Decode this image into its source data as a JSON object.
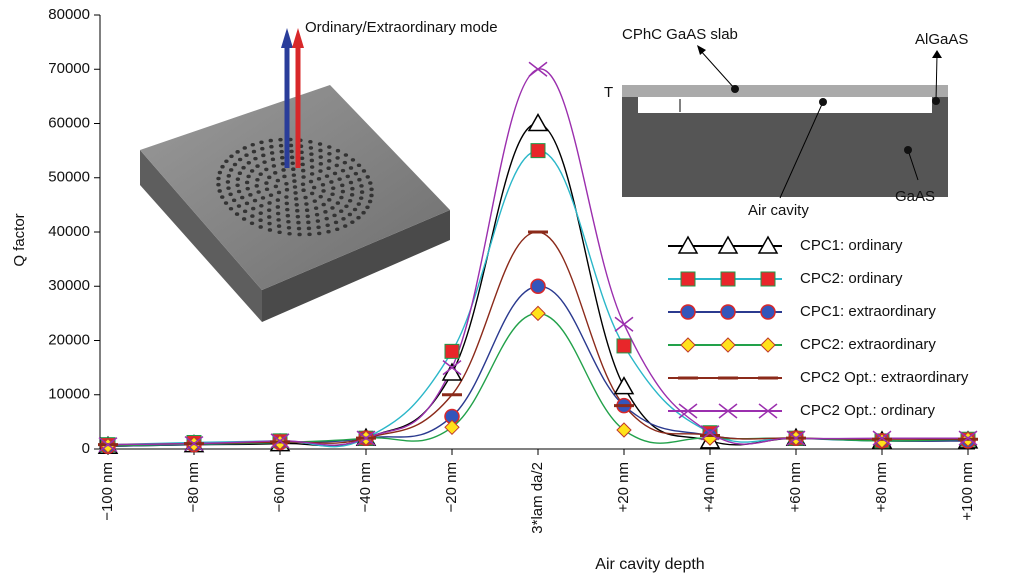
{
  "chart_data": {
    "type": "line",
    "y_label": "Q factor",
    "x_label": "Air cavity depth",
    "categories": [
      "−100 nm",
      "−80 nm",
      "−60 nm",
      "−40 nm",
      "−20 nm",
      "3*lam da/2",
      "+20 nm",
      "+40 nm",
      "+60 nm",
      "+80 nm",
      "+100 nm"
    ],
    "ylim": [
      0,
      80000
    ],
    "yticks": [
      0,
      10000,
      20000,
      30000,
      40000,
      50000,
      60000,
      70000,
      80000
    ],
    "legend": "right",
    "series": [
      {
        "name": "CPC1: ordinary",
        "color": "#000000",
        "marker": "triangle",
        "values": [
          500,
          800,
          1000,
          2000,
          14000,
          60000,
          11500,
          1500,
          2000,
          1500,
          1500
        ]
      },
      {
        "name": "CPC2: ordinary",
        "color": "#2bb7c9",
        "marker": "square",
        "values": [
          800,
          1200,
          1500,
          2000,
          18000,
          55000,
          19000,
          3000,
          2000,
          1500,
          1800
        ]
      },
      {
        "name": "CPC1: extraordinary",
        "color": "#2b3a8f",
        "marker": "circle",
        "values": [
          500,
          800,
          1200,
          2000,
          6000,
          30000,
          8000,
          2500,
          2000,
          1500,
          1500
        ]
      },
      {
        "name": "CPC2: extraordinary",
        "color": "#22a14a",
        "marker": "diamond",
        "values": [
          600,
          900,
          1200,
          2000,
          4000,
          25000,
          3500,
          2000,
          2000,
          1500,
          1800
        ]
      },
      {
        "name": "CPC2 Opt.: extraordinary",
        "color": "#8b2a1a",
        "marker": "dash",
        "values": [
          800,
          1000,
          1300,
          2000,
          10000,
          40000,
          8000,
          2500,
          2000,
          1800,
          1800
        ]
      },
      {
        "name": "CPC2 Opt.: ordinary",
        "color": "#9b2fae",
        "marker": "x",
        "values": [
          800,
          1000,
          1500,
          2000,
          15000,
          70000,
          23000,
          3000,
          2000,
          2000,
          2000
        ]
      }
    ],
    "insets": {
      "slab": {
        "label": "Ordinary/Extraordinary mode"
      },
      "cross_section": {
        "slab_label": "CPhC GaAS slab",
        "cap_label": "AlGaAS",
        "thickness_label": "T",
        "cavity_label": "Air cavity",
        "substrate_label": "GaAS"
      }
    }
  }
}
